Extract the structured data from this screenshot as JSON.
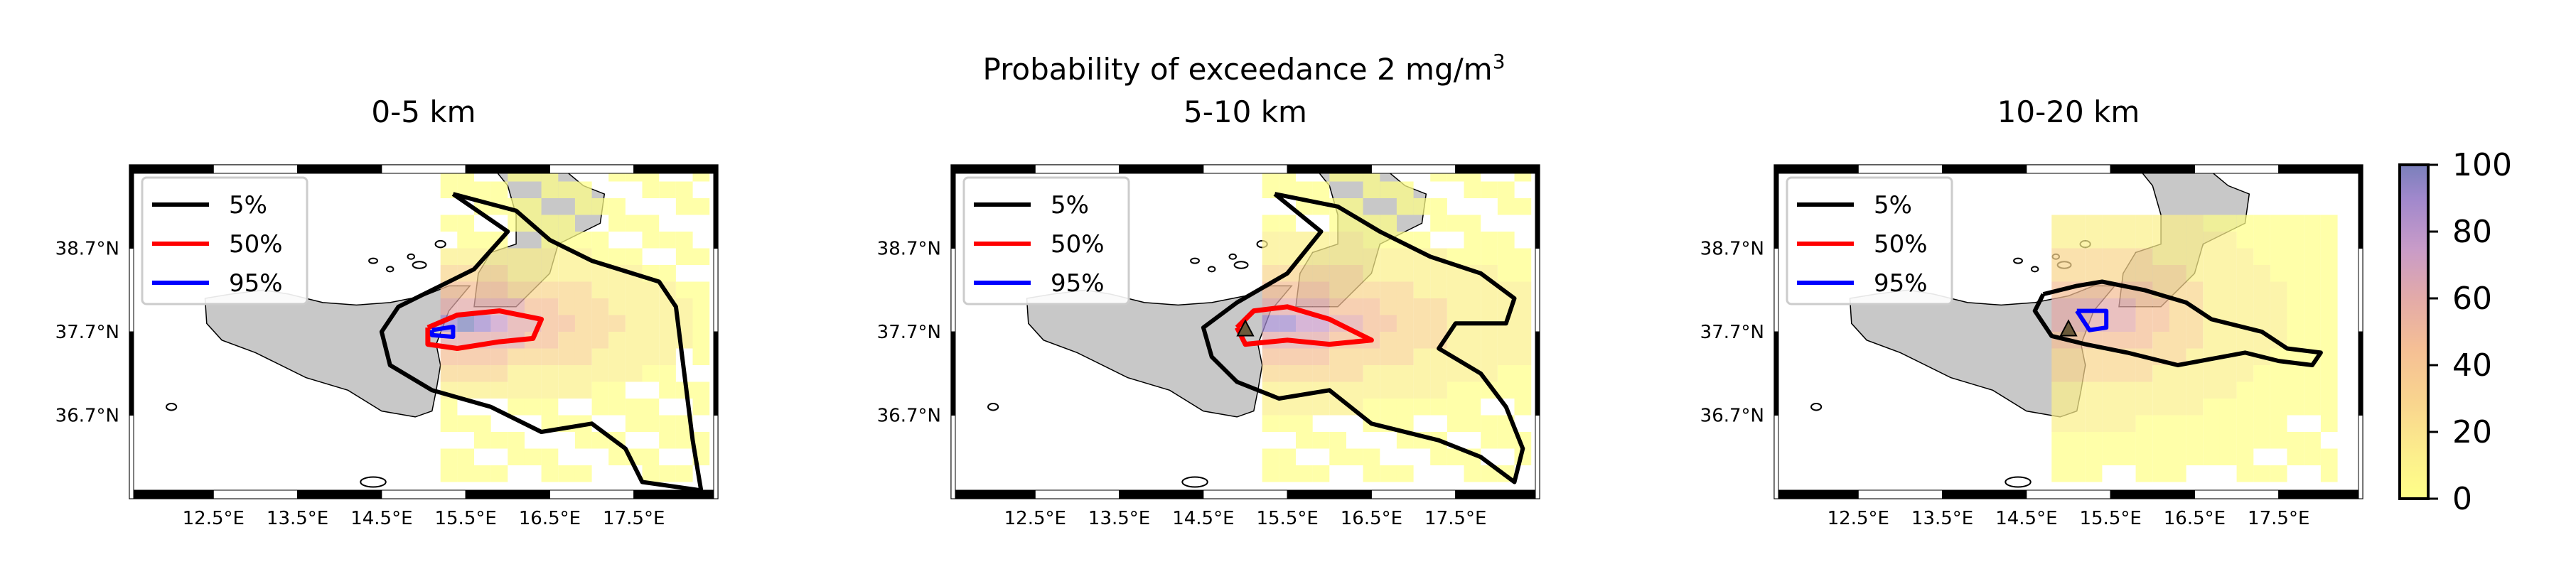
{
  "figure": {
    "title_main": "Probability of exceedance 2 mg/m",
    "title_sup": "3"
  },
  "colors": {
    "land": "#c8c8c8",
    "cell_scale": [
      "#ffff88",
      "#fcf08c",
      "#f9d68e",
      "#f5bf95",
      "#e3aaa8",
      "#c89bc8",
      "#a088cc",
      "#7a80bb"
    ],
    "contour_5": "#000000",
    "contour_50": "#ff0000",
    "contour_95": "#0000ff"
  },
  "chart_data": [
    {
      "type": "heatmap",
      "title": "0-5 km",
      "xticks": [
        "12.5°E",
        "13.5°E",
        "14.5°E",
        "15.5°E",
        "16.5°E",
        "17.5°E"
      ],
      "yticks": [
        "38.7°N",
        "37.7°N",
        "36.7°N"
      ],
      "xlim": [
        11.5,
        18.5
      ],
      "ylim": [
        35.7,
        39.7
      ],
      "legend": [
        "5%",
        "50%",
        "95%"
      ],
      "legend_position": "upper-left",
      "vent": false,
      "grid": {
        "lon0": 15.2,
        "lat0": 35.9,
        "step": 0.2,
        "nx": 16,
        "ny": 19,
        "cx": 15.4,
        "cy": 37.7,
        "sx": 0.8,
        "sy": 0.28,
        "decay": 1.7,
        "vmax": 95,
        "floor": 12
      },
      "contour_5": [
        [
          15.35,
          39.35
        ],
        [
          16.1,
          39.15
        ],
        [
          16.5,
          38.8
        ],
        [
          17.0,
          38.55
        ],
        [
          17.8,
          38.3
        ],
        [
          18.0,
          38.0
        ],
        [
          18.1,
          37.2
        ],
        [
          18.2,
          36.4
        ],
        [
          18.3,
          35.8
        ],
        [
          17.6,
          35.9
        ],
        [
          17.4,
          36.3
        ],
        [
          17.0,
          36.6
        ],
        [
          16.4,
          36.5
        ],
        [
          15.8,
          36.8
        ],
        [
          15.1,
          37.0
        ],
        [
          14.6,
          37.3
        ],
        [
          14.5,
          37.7
        ],
        [
          14.7,
          38.0
        ],
        [
          15.1,
          38.2
        ],
        [
          15.6,
          38.45
        ],
        [
          16.0,
          38.9
        ],
        [
          15.35,
          39.35
        ]
      ],
      "contour_50": [
        [
          15.05,
          37.75
        ],
        [
          15.4,
          37.9
        ],
        [
          15.9,
          37.95
        ],
        [
          16.4,
          37.85
        ],
        [
          16.3,
          37.62
        ],
        [
          15.9,
          37.58
        ],
        [
          15.4,
          37.5
        ],
        [
          15.05,
          37.55
        ],
        [
          15.05,
          37.75
        ]
      ],
      "contour_95": [
        [
          15.1,
          37.72
        ],
        [
          15.35,
          37.76
        ],
        [
          15.35,
          37.64
        ],
        [
          15.1,
          37.66
        ],
        [
          15.1,
          37.72
        ]
      ]
    },
    {
      "type": "heatmap",
      "title": "5-10 km",
      "xticks": [
        "12.5°E",
        "13.5°E",
        "14.5°E",
        "15.5°E",
        "16.5°E",
        "17.5°E"
      ],
      "yticks": [
        "38.7°N",
        "37.7°N",
        "36.7°N"
      ],
      "xlim": [
        11.5,
        18.5
      ],
      "ylim": [
        35.7,
        39.7
      ],
      "legend": [
        "5%",
        "50%",
        "95%"
      ],
      "legend_position": "upper-left",
      "vent": true,
      "grid": {
        "lon0": 15.2,
        "lat0": 35.9,
        "step": 0.2,
        "nx": 16,
        "ny": 19,
        "cx": 15.3,
        "cy": 37.7,
        "sx": 0.9,
        "sy": 0.3,
        "decay": 1.8,
        "vmax": 88,
        "floor": 10
      },
      "contour_5": [
        [
          15.35,
          39.35
        ],
        [
          16.1,
          39.2
        ],
        [
          16.6,
          38.9
        ],
        [
          17.2,
          38.6
        ],
        [
          17.8,
          38.4
        ],
        [
          18.2,
          38.1
        ],
        [
          18.1,
          37.8
        ],
        [
          17.5,
          37.8
        ],
        [
          17.3,
          37.5
        ],
        [
          17.8,
          37.2
        ],
        [
          18.1,
          36.8
        ],
        [
          18.3,
          36.3
        ],
        [
          18.2,
          35.9
        ],
        [
          17.8,
          36.2
        ],
        [
          17.3,
          36.4
        ],
        [
          16.5,
          36.6
        ],
        [
          16.0,
          37.0
        ],
        [
          15.4,
          36.9
        ],
        [
          14.9,
          37.1
        ],
        [
          14.6,
          37.4
        ],
        [
          14.5,
          37.75
        ],
        [
          14.9,
          38.05
        ],
        [
          15.5,
          38.4
        ],
        [
          15.9,
          38.9
        ],
        [
          15.35,
          39.35
        ]
      ],
      "contour_50": [
        [
          14.9,
          37.75
        ],
        [
          15.1,
          37.95
        ],
        [
          15.5,
          38.0
        ],
        [
          16.0,
          37.85
        ],
        [
          16.5,
          37.6
        ],
        [
          16.0,
          37.55
        ],
        [
          15.5,
          37.6
        ],
        [
          15.0,
          37.55
        ],
        [
          14.9,
          37.75
        ]
      ],
      "contour_95": []
    },
    {
      "type": "heatmap",
      "title": "10-20 km",
      "xticks": [
        "12.5°E",
        "13.5°E",
        "14.5°E",
        "15.5°E",
        "16.5°E",
        "17.5°E"
      ],
      "yticks": [
        "38.7°N",
        "37.7°N",
        "36.7°N"
      ],
      "xlim": [
        11.5,
        18.5
      ],
      "ylim": [
        35.7,
        39.7
      ],
      "legend": [
        "5%",
        "50%",
        "95%"
      ],
      "legend_position": "upper-left",
      "vent": true,
      "grid": {
        "lon0": 14.6,
        "lat0": 35.9,
        "step": 0.2,
        "nx": 18,
        "ny": 19,
        "cx": 15.2,
        "cy": 37.8,
        "sx": 0.6,
        "sy": 0.35,
        "decay": 2.2,
        "vmax": 70,
        "floor": 6
      },
      "contour_5": [
        [
          14.7,
          38.15
        ],
        [
          15.1,
          38.25
        ],
        [
          15.4,
          38.3
        ],
        [
          15.9,
          38.2
        ],
        [
          16.4,
          38.05
        ],
        [
          16.7,
          37.85
        ],
        [
          17.3,
          37.7
        ],
        [
          17.6,
          37.5
        ],
        [
          18.0,
          37.45
        ],
        [
          17.9,
          37.3
        ],
        [
          17.5,
          37.35
        ],
        [
          17.1,
          37.45
        ],
        [
          16.3,
          37.3
        ],
        [
          15.7,
          37.45
        ],
        [
          15.2,
          37.55
        ],
        [
          14.8,
          37.65
        ],
        [
          14.6,
          37.95
        ],
        [
          14.7,
          38.15
        ]
      ],
      "contour_50": [],
      "contour_95": [
        [
          15.1,
          37.95
        ],
        [
          15.45,
          37.95
        ],
        [
          15.45,
          37.75
        ],
        [
          15.25,
          37.72
        ],
        [
          15.1,
          37.95
        ]
      ]
    }
  ],
  "colorbar": {
    "ticks": [
      "100",
      "80",
      "60",
      "40",
      "20",
      "0"
    ]
  }
}
